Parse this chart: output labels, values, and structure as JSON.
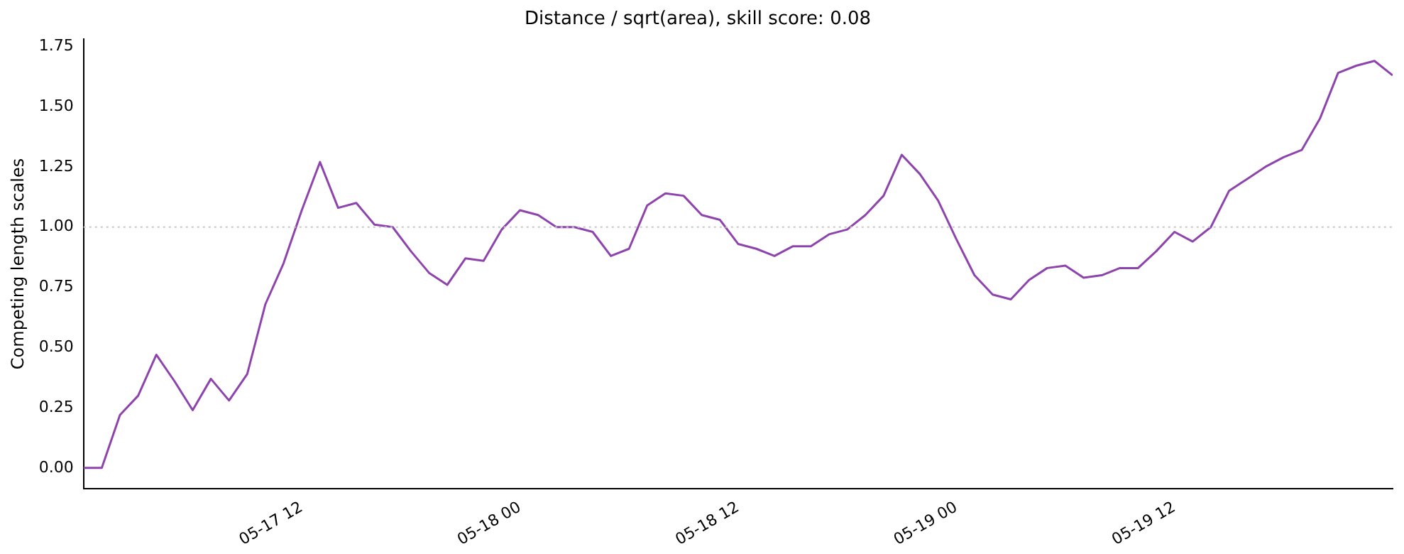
{
  "chart_data": {
    "type": "line",
    "title": "Distance / sqrt(area), skill score: 0.08",
    "ylabel": "Competing length scales",
    "x": [
      "--05-17T00:00",
      "--05-17T01:00",
      "--05-17T02:00",
      "--05-17T03:00",
      "--05-17T04:00",
      "--05-17T05:00",
      "--05-17T06:00",
      "--05-17T07:00",
      "--05-17T08:00",
      "--05-17T09:00",
      "--05-17T10:00",
      "--05-17T11:00",
      "--05-17T12:00",
      "--05-17T13:00",
      "--05-17T14:00",
      "--05-17T15:00",
      "--05-17T16:00",
      "--05-17T17:00",
      "--05-17T18:00",
      "--05-17T19:00",
      "--05-17T20:00",
      "--05-17T21:00",
      "--05-17T22:00",
      "--05-17T23:00",
      "--05-18T00:00",
      "--05-18T01:00",
      "--05-18T02:00",
      "--05-18T03:00",
      "--05-18T04:00",
      "--05-18T05:00",
      "--05-18T06:00",
      "--05-18T07:00",
      "--05-18T08:00",
      "--05-18T09:00",
      "--05-18T10:00",
      "--05-18T11:00",
      "--05-18T12:00",
      "--05-18T13:00",
      "--05-18T14:00",
      "--05-18T15:00",
      "--05-18T16:00",
      "--05-18T17:00",
      "--05-18T18:00",
      "--05-18T19:00",
      "--05-18T20:00",
      "--05-18T21:00",
      "--05-18T22:00",
      "--05-18T23:00",
      "--05-19T00:00",
      "--05-19T01:00",
      "--05-19T02:00",
      "--05-19T03:00",
      "--05-19T04:00",
      "--05-19T05:00",
      "--05-19T06:00",
      "--05-19T07:00",
      "--05-19T08:00",
      "--05-19T09:00",
      "--05-19T10:00",
      "--05-19T11:00",
      "--05-19T12:00",
      "--05-19T13:00",
      "--05-19T14:00",
      "--05-19T15:00",
      "--05-19T16:00",
      "--05-19T17:00",
      "--05-19T18:00",
      "--05-19T19:00",
      "--05-19T20:00",
      "--05-19T21:00",
      "--05-19T22:00",
      "--05-19T23:00",
      "--05-20T00:00"
    ],
    "series": [
      {
        "color": "#8e44ad",
        "values": [
          0.0,
          0.0,
          0.22,
          0.3,
          0.47,
          0.36,
          0.24,
          0.37,
          0.28,
          0.39,
          0.68,
          0.85,
          1.07,
          1.27,
          1.08,
          1.1,
          1.01,
          1.0,
          0.9,
          0.81,
          0.76,
          0.87,
          0.86,
          0.99,
          1.07,
          1.05,
          1.0,
          1.0,
          0.98,
          0.88,
          0.91,
          1.09,
          1.14,
          1.13,
          1.05,
          1.03,
          0.93,
          0.91,
          0.88,
          0.92,
          0.92,
          0.97,
          0.99,
          1.05,
          1.13,
          1.3,
          1.22,
          1.11,
          0.95,
          0.8,
          0.72,
          0.7,
          0.78,
          0.83,
          0.84,
          0.79,
          0.8,
          0.83,
          0.83,
          0.9,
          0.98,
          0.94,
          1.0,
          1.15,
          1.2,
          1.25,
          1.29,
          1.32,
          1.45,
          1.64,
          1.67,
          1.69,
          1.63
        ]
      }
    ],
    "xlim": [
      "--05-17T00:00",
      "--05-20T00:00"
    ],
    "xticks": [
      {
        "value": "--05-17T12:00",
        "label": "05-17 12"
      },
      {
        "value": "--05-18T00:00",
        "label": "05-18 00"
      },
      {
        "value": "--05-18T12:00",
        "label": "05-18 12"
      },
      {
        "value": "--05-19T00:00",
        "label": "05-19 00"
      },
      {
        "value": "--05-19T12:00",
        "label": "05-19 12"
      }
    ],
    "ylim": [
      -0.085,
      1.78
    ],
    "yticks": [
      {
        "value": 0,
        "label": "0.00"
      },
      {
        "value": 0.25,
        "label": "0.25"
      },
      {
        "value": 0.5,
        "label": "0.50"
      },
      {
        "value": 0.75,
        "label": "0.75"
      },
      {
        "value": 1,
        "label": "1.00"
      },
      {
        "value": 1.25,
        "label": "1.25"
      },
      {
        "value": 1.5,
        "label": "1.50"
      },
      {
        "value": 1.75,
        "label": "1.75"
      }
    ],
    "ref_lines": [
      {
        "axis": "y",
        "value": 1,
        "color": "#c8c8c8",
        "line_style": "dotted"
      }
    ],
    "grid": false,
    "legend": false,
    "marker": "none",
    "line_style": "solid"
  }
}
